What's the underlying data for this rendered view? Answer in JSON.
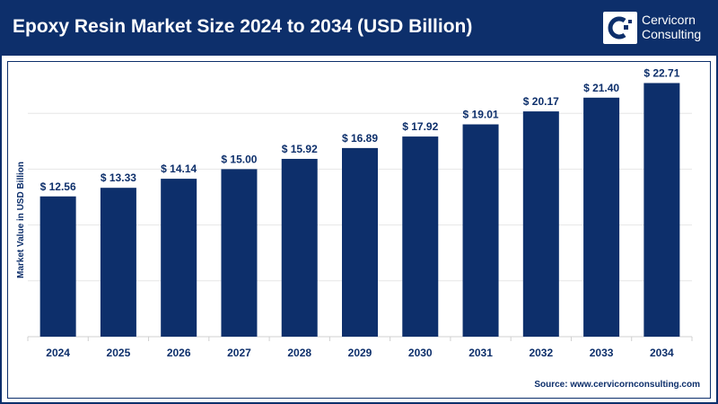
{
  "header": {
    "title": "Epoxy Resin Market Size 2024 to 2034 (USD Billion)",
    "logo_line1": "Cervicorn",
    "logo_line2": "Consulting"
  },
  "source": "Source: www.cervicornconsulting.com",
  "colors": {
    "bar": "#0d2f6b",
    "header": "#0d2f6b",
    "grid": "#e6e6e6"
  },
  "chart_data": {
    "type": "bar",
    "title": "Epoxy Resin Market Size 2024 to 2034 (USD Billion)",
    "xlabel": "",
    "ylabel": "Market Value in USD Billion",
    "categories": [
      "2024",
      "2025",
      "2026",
      "2027",
      "2028",
      "2029",
      "2030",
      "2031",
      "2032",
      "2033",
      "2034"
    ],
    "values": [
      12.56,
      13.33,
      14.14,
      15.0,
      15.92,
      16.89,
      17.92,
      19.01,
      20.17,
      21.4,
      22.71
    ],
    "data_labels": [
      "$ 12.56",
      "$ 13.33",
      "$ 14.14",
      "$ 15.00",
      "$ 15.92",
      "$ 16.89",
      "$ 17.92",
      "$ 19.01",
      "$ 20.17",
      "$ 21.40",
      "$ 22.71"
    ],
    "ylim": [
      0,
      25
    ],
    "grid": true,
    "gridlines": [
      5,
      10,
      15,
      20,
      25
    ]
  }
}
